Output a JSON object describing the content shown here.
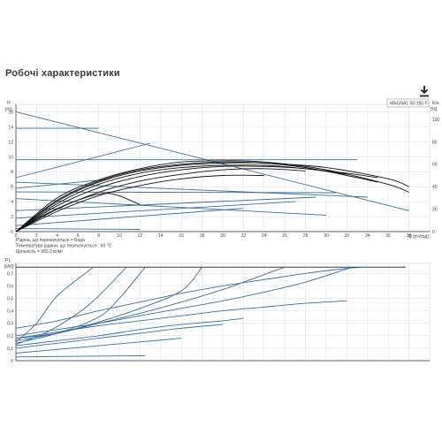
{
  "page": {
    "title": "Робочі характеристики",
    "download_icon": "download-icon"
  },
  "colors": {
    "curve_blue": "#3b6e9e",
    "curve_black": "#111111",
    "grid": "#dddddd",
    "axis": "#333333",
    "text": "#444444"
  },
  "chart_data": [
    {
      "type": "line",
      "name": "head_efficiency",
      "legend_label": "MAGNA1 50-180 F",
      "y_label": "H",
      "y_unit": "[m]",
      "y_ticks": [
        0,
        2,
        4,
        6,
        8,
        10,
        12,
        14,
        16
      ],
      "y2_label": "Eta",
      "y2_unit": "[%]",
      "y2_ticks": [
        0,
        20,
        40,
        60,
        80,
        100
      ],
      "x_label": "Q [m³/год]",
      "x_ticks": [
        0,
        2,
        4,
        6,
        8,
        10,
        12,
        14,
        16,
        18,
        20,
        22,
        24,
        26,
        28,
        30,
        32,
        34,
        36,
        38
      ],
      "xlim": [
        0,
        40
      ],
      "ylim": [
        0,
        17
      ],
      "y2lim": [
        0,
        113.3
      ],
      "notes": [
        "Рідина, що перекачується = Вода",
        "Температура рідини, що перекачується : 60 °C",
        "Щільність = 983.2 кг/м³"
      ],
      "head_series": [
        {
          "x": [
            0,
            38
          ],
          "y": [
            16,
            2.8
          ]
        },
        {
          "x": [
            0,
            8
          ],
          "y": [
            13.8,
            13.8
          ]
        },
        {
          "x": [
            0,
            33
          ],
          "y": [
            9.6,
            9.6
          ]
        },
        {
          "x": [
            0,
            34
          ],
          "y": [
            6.6,
            4.6
          ]
        },
        {
          "x": [
            0,
            31
          ],
          "y": [
            5.3,
            5.2
          ]
        },
        {
          "x": [
            0,
            30
          ],
          "y": [
            4.4,
            2.2
          ]
        },
        {
          "x": [
            0,
            29
          ],
          "y": [
            2.8,
            4.6
          ]
        },
        {
          "x": [
            0,
            27
          ],
          "y": [
            1.8,
            4.0
          ]
        },
        {
          "x": [
            0,
            22
          ],
          "y": [
            0.8,
            3.1
          ]
        },
        {
          "x": [
            0,
            12
          ],
          "y": [
            0.4,
            0.3
          ]
        }
      ],
      "efficiency_series": [
        {
          "x": [
            0,
            4,
            8,
            12,
            16,
            20,
            24,
            28,
            32,
            35
          ],
          "y": [
            0,
            28,
            45,
            55,
            60,
            62,
            61,
            57,
            50,
            44
          ]
        },
        {
          "x": [
            0,
            4,
            8,
            12,
            16,
            20,
            24,
            28,
            32,
            35
          ],
          "y": [
            0,
            25,
            42,
            52,
            57,
            59,
            59,
            56,
            52,
            48
          ]
        },
        {
          "x": [
            0,
            4,
            8,
            12,
            16,
            20,
            24,
            28,
            32
          ],
          "y": [
            0,
            23,
            39,
            49,
            55,
            58,
            58,
            56,
            51
          ]
        },
        {
          "x": [
            0,
            4,
            8,
            12,
            16,
            20,
            24,
            28
          ],
          "y": [
            0,
            20,
            35,
            45,
            51,
            55,
            56,
            54
          ]
        },
        {
          "x": [
            0,
            4,
            8,
            12,
            16,
            20,
            24
          ],
          "y": [
            0,
            18,
            32,
            41,
            47,
            50,
            50
          ]
        },
        {
          "x": [
            0,
            4,
            8,
            12,
            16,
            20,
            24,
            30,
            36,
            38
          ],
          "y": [
            0,
            30,
            46,
            56,
            62,
            63,
            62,
            55,
            42,
            35
          ]
        },
        {
          "x": [
            0,
            4,
            8,
            12,
            16,
            20,
            24,
            30,
            36,
            38
          ],
          "y": [
            0,
            27,
            44,
            54,
            59,
            61,
            61,
            57,
            47,
            40
          ]
        },
        {
          "x": [
            0,
            3,
            6,
            9,
            12
          ],
          "y": [
            0,
            16,
            28,
            34,
            24
          ]
        }
      ],
      "rising_series": [
        {
          "x": [
            0,
            13
          ],
          "y": [
            7.2,
            11.8
          ]
        },
        {
          "x": [
            0,
            9
          ],
          "y": [
            5.8,
            7.0
          ]
        }
      ]
    },
    {
      "type": "line",
      "name": "power",
      "y_label": "P1",
      "y_unit": "[kW]",
      "y_ticks": [
        0,
        0.1,
        0.2,
        0.3,
        0.4,
        0.5,
        0.6,
        0.7
      ],
      "xlim": [
        0,
        40
      ],
      "ylim": [
        0,
        0.78
      ],
      "series": [
        {
          "x": [
            0,
            37.7
          ],
          "y": [
            0.75,
            0.75
          ]
        },
        {
          "x": [
            0,
            4,
            8,
            12,
            16,
            20,
            24,
            28,
            32,
            33.8
          ],
          "y": [
            0.26,
            0.32,
            0.4,
            0.47,
            0.54,
            0.6,
            0.65,
            0.7,
            0.74,
            0.75
          ]
        },
        {
          "x": [
            0,
            4,
            8,
            12,
            16,
            20,
            24,
            28,
            32.5
          ],
          "y": [
            0.2,
            0.25,
            0.3,
            0.36,
            0.42,
            0.48,
            0.55,
            0.63,
            0.75
          ]
        },
        {
          "x": [
            0,
            4,
            8,
            12,
            16,
            20,
            22,
            26
          ],
          "y": [
            0.18,
            0.22,
            0.3,
            0.38,
            0.47,
            0.57,
            0.63,
            0.75
          ]
        },
        {
          "x": [
            0,
            4,
            8,
            12,
            16,
            18
          ],
          "y": [
            0.16,
            0.22,
            0.31,
            0.42,
            0.56,
            0.75
          ]
        },
        {
          "x": [
            0,
            4,
            8,
            10,
            12.5
          ],
          "y": [
            0.14,
            0.22,
            0.35,
            0.5,
            0.75
          ]
        },
        {
          "x": [
            0,
            3,
            6,
            8,
            10.7
          ],
          "y": [
            0.13,
            0.23,
            0.38,
            0.52,
            0.75
          ]
        },
        {
          "x": [
            0,
            2,
            4,
            7.5
          ],
          "y": [
            0.15,
            0.3,
            0.52,
            0.75
          ]
        },
        {
          "x": [
            0,
            4,
            8,
            12,
            16,
            20,
            24,
            28,
            32
          ],
          "y": [
            0.18,
            0.23,
            0.28,
            0.32,
            0.36,
            0.4,
            0.43,
            0.46,
            0.48
          ]
        },
        {
          "x": [
            0,
            4,
            8,
            12,
            16,
            20,
            22
          ],
          "y": [
            0.12,
            0.16,
            0.2,
            0.25,
            0.29,
            0.32,
            0.34
          ]
        },
        {
          "x": [
            0,
            4,
            8,
            12,
            16,
            20
          ],
          "y": [
            0.1,
            0.14,
            0.18,
            0.22,
            0.26,
            0.29
          ]
        },
        {
          "x": [
            0,
            4,
            8,
            12,
            16
          ],
          "y": [
            0.06,
            0.09,
            0.12,
            0.15,
            0.18
          ]
        },
        {
          "x": [
            0,
            6,
            12.5
          ],
          "y": [
            0.03,
            0.035,
            0.04
          ]
        }
      ]
    }
  ]
}
